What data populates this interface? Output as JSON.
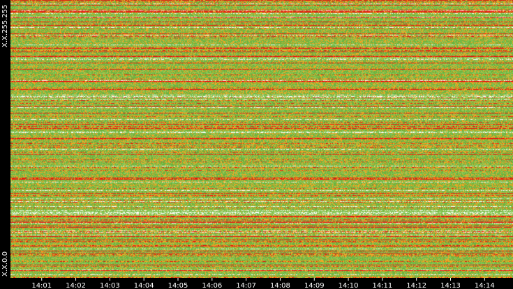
{
  "chart_data": {
    "type": "heatmap",
    "x_ticks": [
      "14:01",
      "14:02",
      "14:03",
      "14:04",
      "14:05",
      "14:06",
      "14:07",
      "14:08",
      "14:09",
      "14:10",
      "14:11",
      "14:12",
      "14:13",
      "14:14"
    ],
    "y_labels": {
      "top": "X.X.255.255",
      "bottom": "X.X.0.0"
    },
    "xlim": [
      "14:00:05",
      "14:14:50"
    ],
    "grid": false,
    "legend": "none",
    "colors": {
      "low": "#ffffff",
      "low_mid": "#8ecb5b",
      "mid": "#6bb33f",
      "high_mid": "#f5a623",
      "high": "#e8150c",
      "background": "#000000"
    }
  }
}
